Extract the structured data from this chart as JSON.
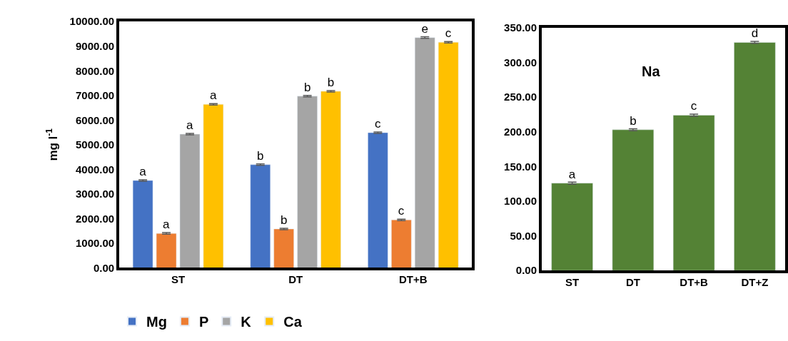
{
  "chart_data": [
    {
      "type": "bar",
      "ylabel": "mg l$^{-1}$",
      "categories": [
        "ST",
        "DT",
        "DT+B"
      ],
      "series": [
        {
          "name": "Mg",
          "color": "#4472c4",
          "values": [
            3550,
            4190,
            5490
          ],
          "errors": [
            30,
            30,
            30
          ],
          "value_labels": [
            "a",
            "b",
            "c"
          ]
        },
        {
          "name": "P",
          "color": "#ed7d31",
          "values": [
            1400,
            1580,
            1950
          ],
          "errors": [
            30,
            30,
            30
          ],
          "value_labels": [
            "a",
            "b",
            "c"
          ]
        },
        {
          "name": "K",
          "color": "#a5a5a5",
          "values": [
            5430,
            6970,
            9350
          ],
          "errors": [
            30,
            30,
            30
          ],
          "value_labels": [
            "a",
            "b",
            "e"
          ]
        },
        {
          "name": "Ca",
          "color": "#ffc000",
          "values": [
            6640,
            7170,
            9160
          ],
          "errors": [
            30,
            30,
            30
          ],
          "value_labels": [
            "a",
            "b",
            "c"
          ]
        }
      ],
      "ylim": [
        0,
        10000
      ],
      "yticks": [
        {
          "value": 0,
          "label": "0.00"
        },
        {
          "value": 1000,
          "label": "1000.00"
        },
        {
          "value": 2000,
          "label": "2000.00"
        },
        {
          "value": 3000,
          "label": "3000.00"
        },
        {
          "value": 4000,
          "label": "4000.00"
        },
        {
          "value": 5000,
          "label": "5000.00"
        },
        {
          "value": 6000,
          "label": "6000.00"
        },
        {
          "value": 7000,
          "label": "7000.00"
        },
        {
          "value": 8000,
          "label": "8000.00"
        },
        {
          "value": 9000,
          "label": "9000.00"
        },
        {
          "value": 10000,
          "label": "10000.00"
        }
      ],
      "legend": "bottom"
    },
    {
      "type": "bar",
      "title": "Na",
      "categories": [
        "ST",
        "DT",
        "DT+B",
        "DT+Z"
      ],
      "series": [
        {
          "color": "#548235",
          "values": [
            126,
            203,
            224,
            329
          ],
          "errors": [
            1.5,
            1.5,
            1.5,
            1.5
          ],
          "value_labels": [
            "a",
            "b",
            "c",
            "d"
          ]
        }
      ],
      "ylim": [
        0,
        350
      ],
      "yticks": [
        {
          "value": 0,
          "label": "0.00"
        },
        {
          "value": 50,
          "label": "50.00"
        },
        {
          "value": 100,
          "label": "100.00"
        },
        {
          "value": 150,
          "label": "150.00"
        },
        {
          "value": 200,
          "label": "200.00"
        },
        {
          "value": 250,
          "label": "250.00"
        },
        {
          "value": 300,
          "label": "300.00"
        },
        {
          "value": 350,
          "label": "350.00"
        }
      ]
    }
  ]
}
